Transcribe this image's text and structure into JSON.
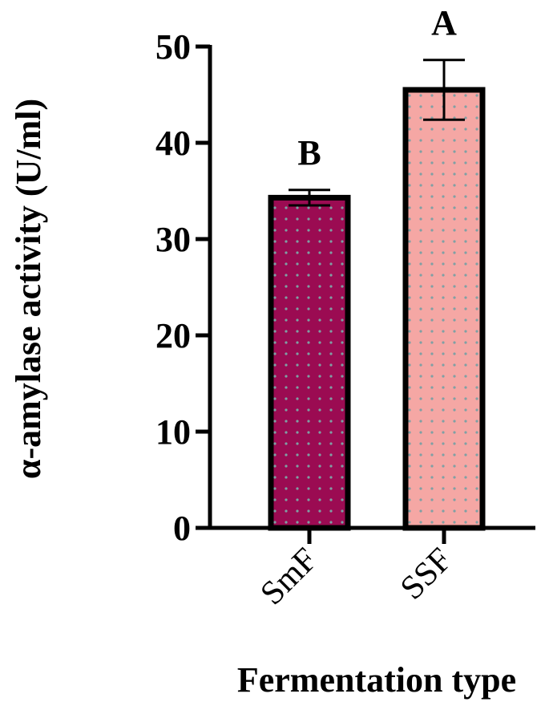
{
  "chart_data": {
    "type": "bar",
    "categories": [
      "SmF",
      "SSF"
    ],
    "values": [
      34.3,
      45.5
    ],
    "errors": [
      0.8,
      3.1
    ],
    "significance_labels": [
      "B",
      "A"
    ],
    "bar_colors": [
      "#9b0b52",
      "#f5a7a4"
    ],
    "pattern_dot_color": "#7fa0a4",
    "xlabel": "Fermentation type",
    "ylabel": "α-amylase activity (U/ml)",
    "ylim": [
      0,
      50
    ],
    "yticks": [
      0,
      10,
      20,
      30,
      40,
      50
    ],
    "grid": false,
    "legend": "none"
  }
}
